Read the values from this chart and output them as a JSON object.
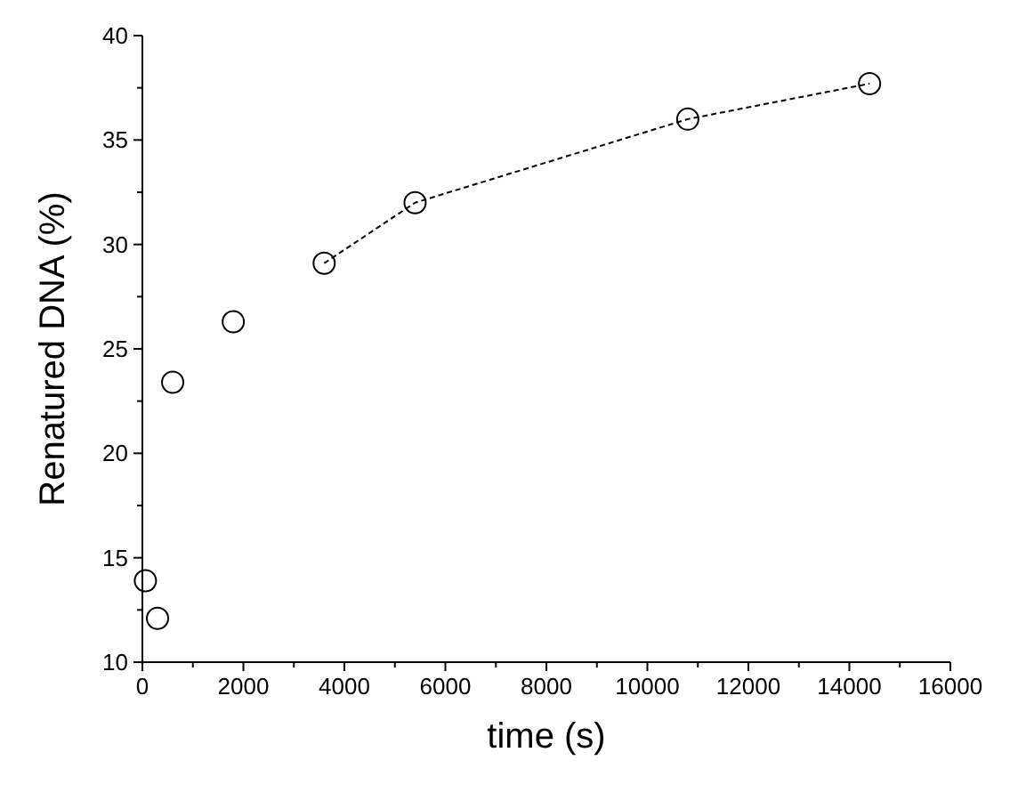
{
  "chart_data": {
    "type": "scatter",
    "xlabel": "time (s)",
    "ylabel": "Renatured DNA (%)",
    "xlim": [
      0,
      16000
    ],
    "ylim": [
      10,
      40
    ],
    "xticks": [
      0,
      {
        "value": 1000,
        "label": null
      },
      2000,
      {
        "value": 3000,
        "label": null
      },
      4000,
      {
        "value": 5000,
        "label": null
      },
      6000,
      {
        "value": 7000,
        "label": null
      },
      8000,
      {
        "value": 9000,
        "label": null
      },
      10000,
      {
        "value": 11000,
        "label": null
      },
      12000,
      {
        "value": 13000,
        "label": null
      },
      14000,
      {
        "value": 15000,
        "label": null
      },
      16000
    ],
    "yticks": [
      10,
      {
        "value": 12.5,
        "label": null
      },
      15,
      {
        "value": 17.5,
        "label": null
      },
      20,
      {
        "value": 22.5,
        "label": null
      },
      25,
      {
        "value": 27.5,
        "label": null
      },
      30,
      {
        "value": 32.5,
        "label": null
      },
      35,
      {
        "value": 37.5,
        "label": null
      },
      40
    ],
    "grid": false,
    "marker": "circle",
    "series": [
      {
        "color": "#000000",
        "x": [
          60,
          300,
          600,
          1800,
          3600,
          5400,
          10800,
          14400
        ],
        "values": [
          13.9,
          12.1,
          23.4,
          26.3,
          29.1,
          32.0,
          36.0,
          37.7
        ]
      },
      {
        "type": "line",
        "color": "#000000",
        "line_style": "dashed",
        "marker": "none",
        "x": [
          3600,
          5400,
          10800,
          14400
        ],
        "values": [
          29.1,
          32.0,
          36.0,
          37.7
        ]
      }
    ]
  }
}
